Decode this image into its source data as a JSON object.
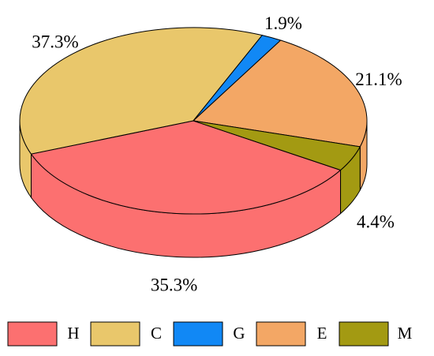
{
  "chart_data": {
    "type": "pie",
    "categories": [
      "H",
      "C",
      "G",
      "E",
      "M"
    ],
    "values": [
      35.3,
      37.3,
      1.9,
      21.1,
      4.4
    ],
    "value_labels": [
      "35.3%",
      "37.3%",
      "1.9%",
      "21.1%",
      "4.4%"
    ],
    "colors": [
      "#fc7070",
      "#e9c76b",
      "#1188f5",
      "#f3a765",
      "#a39a12"
    ],
    "legend": "bottom"
  }
}
